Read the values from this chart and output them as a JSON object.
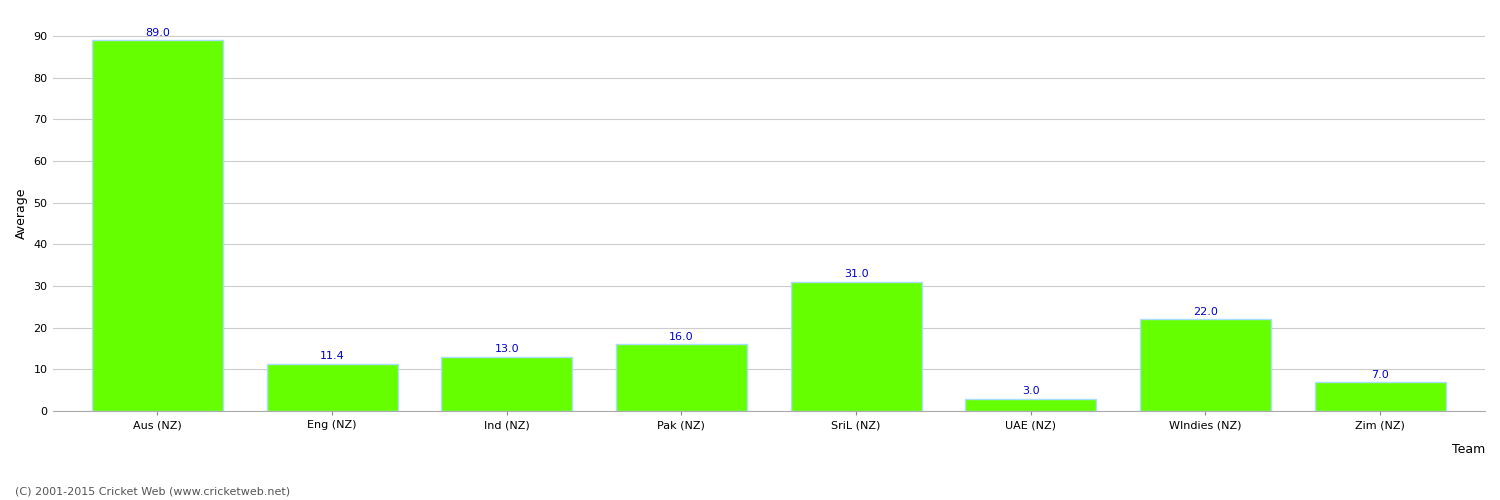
{
  "categories": [
    "Aus (NZ)",
    "Eng (NZ)",
    "Ind (NZ)",
    "Pak (NZ)",
    "SriL (NZ)",
    "UAE (NZ)",
    "WIndies (NZ)",
    "Zim (NZ)"
  ],
  "values": [
    89.0,
    11.4,
    13.0,
    16.0,
    31.0,
    3.0,
    22.0,
    7.0
  ],
  "bar_color": "#66ff00",
  "bar_edge_color": "#aaddff",
  "ylabel": "Average",
  "xlabel": "Team",
  "ylim": [
    0,
    95
  ],
  "yticks": [
    0,
    10,
    20,
    30,
    40,
    50,
    60,
    70,
    80,
    90
  ],
  "label_color": "#0000cc",
  "label_fontsize": 8,
  "axis_label_fontsize": 9,
  "tick_fontsize": 8,
  "grid_color": "#cccccc",
  "background_color": "#ffffff",
  "footer_text": "(C) 2001-2015 Cricket Web (www.cricketweb.net)",
  "footer_fontsize": 8,
  "footer_color": "#555555",
  "bar_width": 0.75
}
